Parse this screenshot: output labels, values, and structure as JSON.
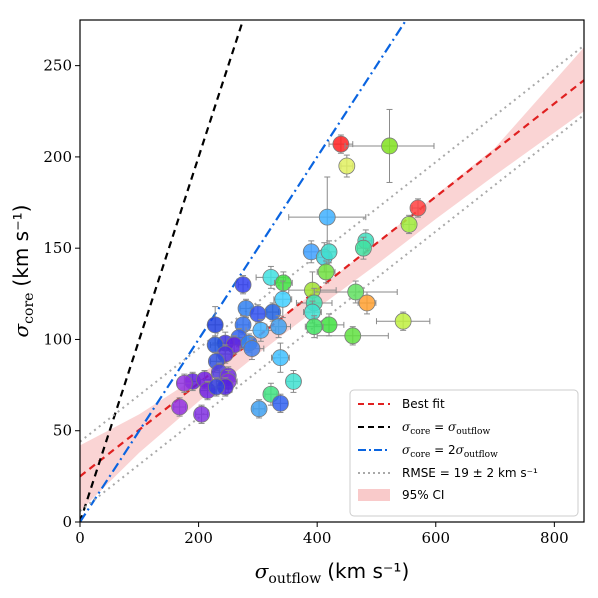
{
  "chart_data": {
    "type": "scatter",
    "xlim": [
      0,
      850
    ],
    "ylim": [
      0,
      275
    ],
    "x_ticks": [
      0,
      200,
      400,
      600,
      800
    ],
    "y_ticks": [
      0,
      50,
      100,
      150,
      200,
      250
    ],
    "xlabel": {
      "symbol": "σ",
      "sub": "outflow",
      "unit": "(km s⁻¹)"
    },
    "ylabel": {
      "symbol": "σ",
      "sub": "core",
      "unit": "(km s⁻¹)"
    },
    "grid": false,
    "legend": {
      "placement": "lower-right",
      "entries": [
        {
          "text": "Best fit",
          "style": "dashed",
          "color": "#e02020"
        },
        {
          "text": "σ_core = σ_outflow",
          "style": "dashed",
          "color": "#000000",
          "parts": [
            "σ",
            "core",
            " = ",
            "σ",
            "outflow"
          ]
        },
        {
          "text": "σ_core = 2σ_outflow",
          "style": "dashdot",
          "color": "#0a64e0",
          "parts": [
            "σ",
            "core",
            " = 2",
            "σ",
            "outflow"
          ]
        },
        {
          "text": "RMSE = 19 ± 2 km s⁻¹",
          "style": "dotted",
          "color": "#a9a9a9"
        },
        {
          "text": "95% CI",
          "style": "patch",
          "color": "#f7b8b8"
        }
      ]
    },
    "lines": [
      {
        "name": "Best fit",
        "x": [
          0,
          850
        ],
        "y": [
          25,
          242
        ],
        "color": "#e02020",
        "style": "dashed"
      },
      {
        "name": "σ_core = σ_outflow",
        "x": [
          0,
          275
        ],
        "y": [
          0,
          275
        ],
        "color": "#000000",
        "style": "dashed"
      },
      {
        "name": "σ_core = 2σ_outflow",
        "x": [
          0,
          550
        ],
        "y": [
          0,
          275
        ],
        "color": "#0a64e0",
        "style": "dashdot"
      },
      {
        "name": "RMSE upper",
        "x": [
          0,
          850
        ],
        "y": [
          44,
          261
        ],
        "color": "#a9a9a9",
        "style": "dotted"
      },
      {
        "name": "RMSE lower",
        "x": [
          0,
          850
        ],
        "y": [
          6,
          223
        ],
        "color": "#a9a9a9",
        "style": "dotted"
      }
    ],
    "ci_band": {
      "x": [
        0,
        100,
        200,
        300,
        400,
        500,
        600,
        700,
        850
      ],
      "lower": [
        6,
        38,
        66,
        92,
        117,
        141,
        166,
        190,
        225
      ],
      "upper": [
        42,
        59,
        80,
        103,
        127,
        153,
        179,
        205,
        260
      ],
      "color": "#f7b8b8"
    },
    "points": [
      {
        "x": 440,
        "y": 207,
        "xerr": 20,
        "yerr": 5,
        "color": "#ff2020"
      },
      {
        "x": 522,
        "y": 206,
        "xerr": 75,
        "yerr": 20,
        "color": "#80e020"
      },
      {
        "x": 450,
        "y": 195,
        "xerr": 10,
        "yerr": 6,
        "color": "#e0f060"
      },
      {
        "x": 570,
        "y": 172,
        "xerr": 10,
        "yerr": 5,
        "color": "#ff4040"
      },
      {
        "x": 417,
        "y": 167,
        "xerr": 65,
        "yerr": 22,
        "color": "#40b0ff"
      },
      {
        "x": 555,
        "y": 163,
        "xerr": 10,
        "yerr": 5,
        "color": "#a0f040"
      },
      {
        "x": 482,
        "y": 154,
        "xerr": 10,
        "yerr": 6,
        "color": "#40e0c0"
      },
      {
        "x": 478,
        "y": 150,
        "xerr": 10,
        "yerr": 6,
        "color": "#40e0a0"
      },
      {
        "x": 390,
        "y": 148,
        "xerr": 12,
        "yerr": 6,
        "color": "#40a0ff"
      },
      {
        "x": 412,
        "y": 145,
        "xerr": 12,
        "yerr": 8,
        "color": "#40d0e0"
      },
      {
        "x": 420,
        "y": 148,
        "xerr": 12,
        "yerr": 6,
        "color": "#40e0d0"
      },
      {
        "x": 415,
        "y": 137,
        "xerr": 15,
        "yerr": 6,
        "color": "#70e040"
      },
      {
        "x": 275,
        "y": 130,
        "xerr": 8,
        "yerr": 5,
        "color": "#3040f0"
      },
      {
        "x": 322,
        "y": 134,
        "xerr": 25,
        "yerr": 6,
        "color": "#40e0e0"
      },
      {
        "x": 343,
        "y": 131,
        "xerr": 15,
        "yerr": 6,
        "color": "#40e040"
      },
      {
        "x": 392,
        "y": 127,
        "xerr": 40,
        "yerr": 10,
        "color": "#a0e030"
      },
      {
        "x": 465,
        "y": 126,
        "xerr": 70,
        "yerr": 6,
        "color": "#60e060"
      },
      {
        "x": 342,
        "y": 122,
        "xerr": 15,
        "yerr": 10,
        "color": "#40d0ff"
      },
      {
        "x": 484,
        "y": 120,
        "xerr": 15,
        "yerr": 6,
        "color": "#ffa030"
      },
      {
        "x": 395,
        "y": 120,
        "xerr": 30,
        "yerr": 8,
        "color": "#40e0b0"
      },
      {
        "x": 280,
        "y": 117,
        "xerr": 10,
        "yerr": 5,
        "color": "#3080f0"
      },
      {
        "x": 325,
        "y": 115,
        "xerr": 10,
        "yerr": 5,
        "color": "#2060e0"
      },
      {
        "x": 300,
        "y": 114,
        "xerr": 12,
        "yerr": 5,
        "color": "#3050f0"
      },
      {
        "x": 392,
        "y": 115,
        "xerr": 15,
        "yerr": 6,
        "color": "#40e0d0"
      },
      {
        "x": 545,
        "y": 110,
        "xerr": 45,
        "yerr": 5,
        "color": "#c0f040"
      },
      {
        "x": 228,
        "y": 108,
        "xerr": 12,
        "yerr": 10,
        "color": "#2040e0"
      },
      {
        "x": 275,
        "y": 108,
        "xerr": 10,
        "yerr": 5,
        "color": "#3070f0"
      },
      {
        "x": 420,
        "y": 108,
        "xerr": 25,
        "yerr": 6,
        "color": "#40e040"
      },
      {
        "x": 395,
        "y": 107,
        "xerr": 15,
        "yerr": 6,
        "color": "#40e060"
      },
      {
        "x": 305,
        "y": 105,
        "xerr": 25,
        "yerr": 6,
        "color": "#40b0ff"
      },
      {
        "x": 335,
        "y": 107,
        "xerr": 20,
        "yerr": 6,
        "color": "#40a0f0"
      },
      {
        "x": 460,
        "y": 102,
        "xerr": 60,
        "yerr": 5,
        "color": "#60e040"
      },
      {
        "x": 268,
        "y": 101,
        "xerr": 10,
        "yerr": 5,
        "color": "#3060f0"
      },
      {
        "x": 245,
        "y": 98,
        "xerr": 12,
        "yerr": 6,
        "color": "#4030e0"
      },
      {
        "x": 260,
        "y": 97,
        "xerr": 8,
        "yerr": 5,
        "color": "#6020e0"
      },
      {
        "x": 228,
        "y": 97,
        "xerr": 8,
        "yerr": 5,
        "color": "#2050e0"
      },
      {
        "x": 285,
        "y": 98,
        "xerr": 12,
        "yerr": 5,
        "color": "#3080f0"
      },
      {
        "x": 290,
        "y": 95,
        "xerr": 20,
        "yerr": 6,
        "color": "#4080f0"
      },
      {
        "x": 245,
        "y": 92,
        "xerr": 10,
        "yerr": 5,
        "color": "#5030e0"
      },
      {
        "x": 230,
        "y": 88,
        "xerr": 10,
        "yerr": 5,
        "color": "#3050e0"
      },
      {
        "x": 338,
        "y": 90,
        "xerr": 15,
        "yerr": 8,
        "color": "#40c0ff"
      },
      {
        "x": 235,
        "y": 82,
        "xerr": 10,
        "yerr": 5,
        "color": "#5040e0"
      },
      {
        "x": 250,
        "y": 80,
        "xerr": 10,
        "yerr": 5,
        "color": "#7030e0"
      },
      {
        "x": 190,
        "y": 77,
        "xerr": 10,
        "yerr": 5,
        "color": "#6020e0"
      },
      {
        "x": 210,
        "y": 78,
        "xerr": 10,
        "yerr": 5,
        "color": "#7020e0"
      },
      {
        "x": 250,
        "y": 77,
        "xerr": 15,
        "yerr": 6,
        "color": "#8030e0"
      },
      {
        "x": 176,
        "y": 76,
        "xerr": 12,
        "yerr": 5,
        "color": "#9030e0"
      },
      {
        "x": 360,
        "y": 77,
        "xerr": 12,
        "yerr": 6,
        "color": "#40e0d0"
      },
      {
        "x": 245,
        "y": 74,
        "xerr": 10,
        "yerr": 5,
        "color": "#5020e0"
      },
      {
        "x": 215,
        "y": 72,
        "xerr": 12,
        "yerr": 5,
        "color": "#7020e0"
      },
      {
        "x": 230,
        "y": 74,
        "xerr": 10,
        "yerr": 5,
        "color": "#3040e0"
      },
      {
        "x": 322,
        "y": 70,
        "xerr": 10,
        "yerr": 6,
        "color": "#40e080"
      },
      {
        "x": 168,
        "y": 63,
        "xerr": 10,
        "yerr": 5,
        "color": "#9030e0"
      },
      {
        "x": 302,
        "y": 62,
        "xerr": 10,
        "yerr": 5,
        "color": "#40a0f0"
      },
      {
        "x": 338,
        "y": 65,
        "xerr": 12,
        "yerr": 5,
        "color": "#3060f0"
      },
      {
        "x": 205,
        "y": 59,
        "xerr": 10,
        "yerr": 5,
        "color": "#8030e0"
      }
    ]
  }
}
